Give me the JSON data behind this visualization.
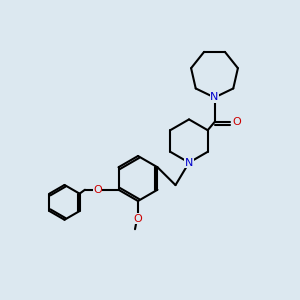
{
  "background_color": "#dce8f0",
  "bond_color": "#000000",
  "nitrogen_color": "#0000cc",
  "oxygen_color": "#cc0000",
  "line_width": 1.5,
  "figsize": [
    3.0,
    3.0
  ],
  "dpi": 100,
  "xlim": [
    0,
    10
  ],
  "ylim": [
    0,
    10
  ]
}
